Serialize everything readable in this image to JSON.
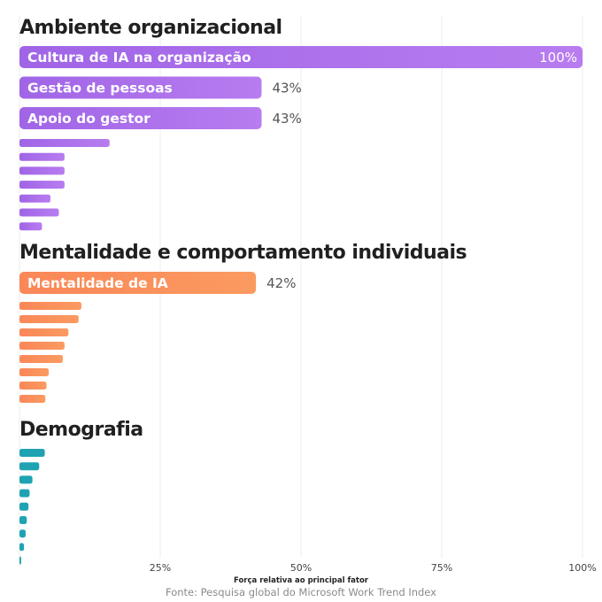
{
  "chart_data": {
    "type": "bar",
    "orientation": "horizontal",
    "xlabel": "Força relativa ao principal fator",
    "source": "Fonte: Pesquisa global do Microsoft Work Trend Index",
    "xlim": [
      0,
      100
    ],
    "ticks": [
      "25%",
      "50%",
      "75%",
      "100%"
    ],
    "tick_values": [
      25,
      50,
      75,
      100
    ],
    "grid": true,
    "colors": {
      "ambiente_start": "#a065e6",
      "ambiente_end": "#b87cf0",
      "mentalidade_start": "#fa8758",
      "mentalidade_end": "#fb9a60",
      "demografia": "#1fa3b3"
    },
    "groups": [
      {
        "title": "Ambiente organizacional",
        "color": "ambiente",
        "bars": [
          {
            "label": "Cultura de IA na organização",
            "value": 100,
            "value_label": "100%"
          },
          {
            "label": "Gestão de pessoas",
            "value": 43,
            "value_label": "43%"
          },
          {
            "label": "Apoio do gestor",
            "value": 43,
            "value_label": "43%"
          },
          {
            "label": "",
            "value": 16
          },
          {
            "label": "",
            "value": 8
          },
          {
            "label": "",
            "value": 8
          },
          {
            "label": "",
            "value": 8
          },
          {
            "label": "",
            "value": 5.5
          },
          {
            "label": "",
            "value": 7
          },
          {
            "label": "",
            "value": 4
          }
        ]
      },
      {
        "title": "Mentalidade e comportamento individuais",
        "color": "mentalidade",
        "bars": [
          {
            "label": "Mentalidade de IA",
            "value": 42,
            "value_label": "42%"
          },
          {
            "label": "",
            "value": 11
          },
          {
            "label": "",
            "value": 10.5
          },
          {
            "label": "",
            "value": 8.7
          },
          {
            "label": "",
            "value": 8
          },
          {
            "label": "",
            "value": 7.7
          },
          {
            "label": "",
            "value": 5.2
          },
          {
            "label": "",
            "value": 4.8
          },
          {
            "label": "",
            "value": 4.6
          }
        ]
      },
      {
        "title": "Demografia",
        "color": "demografia",
        "bars": [
          {
            "label": "",
            "value": 4.5
          },
          {
            "label": "",
            "value": 3.5
          },
          {
            "label": "",
            "value": 2.3
          },
          {
            "label": "",
            "value": 1.8
          },
          {
            "label": "",
            "value": 1.6
          },
          {
            "label": "",
            "value": 1.3
          },
          {
            "label": "",
            "value": 1.1
          },
          {
            "label": "",
            "value": 0.8
          },
          {
            "label": "",
            "value": 0.3
          }
        ]
      }
    ]
  }
}
